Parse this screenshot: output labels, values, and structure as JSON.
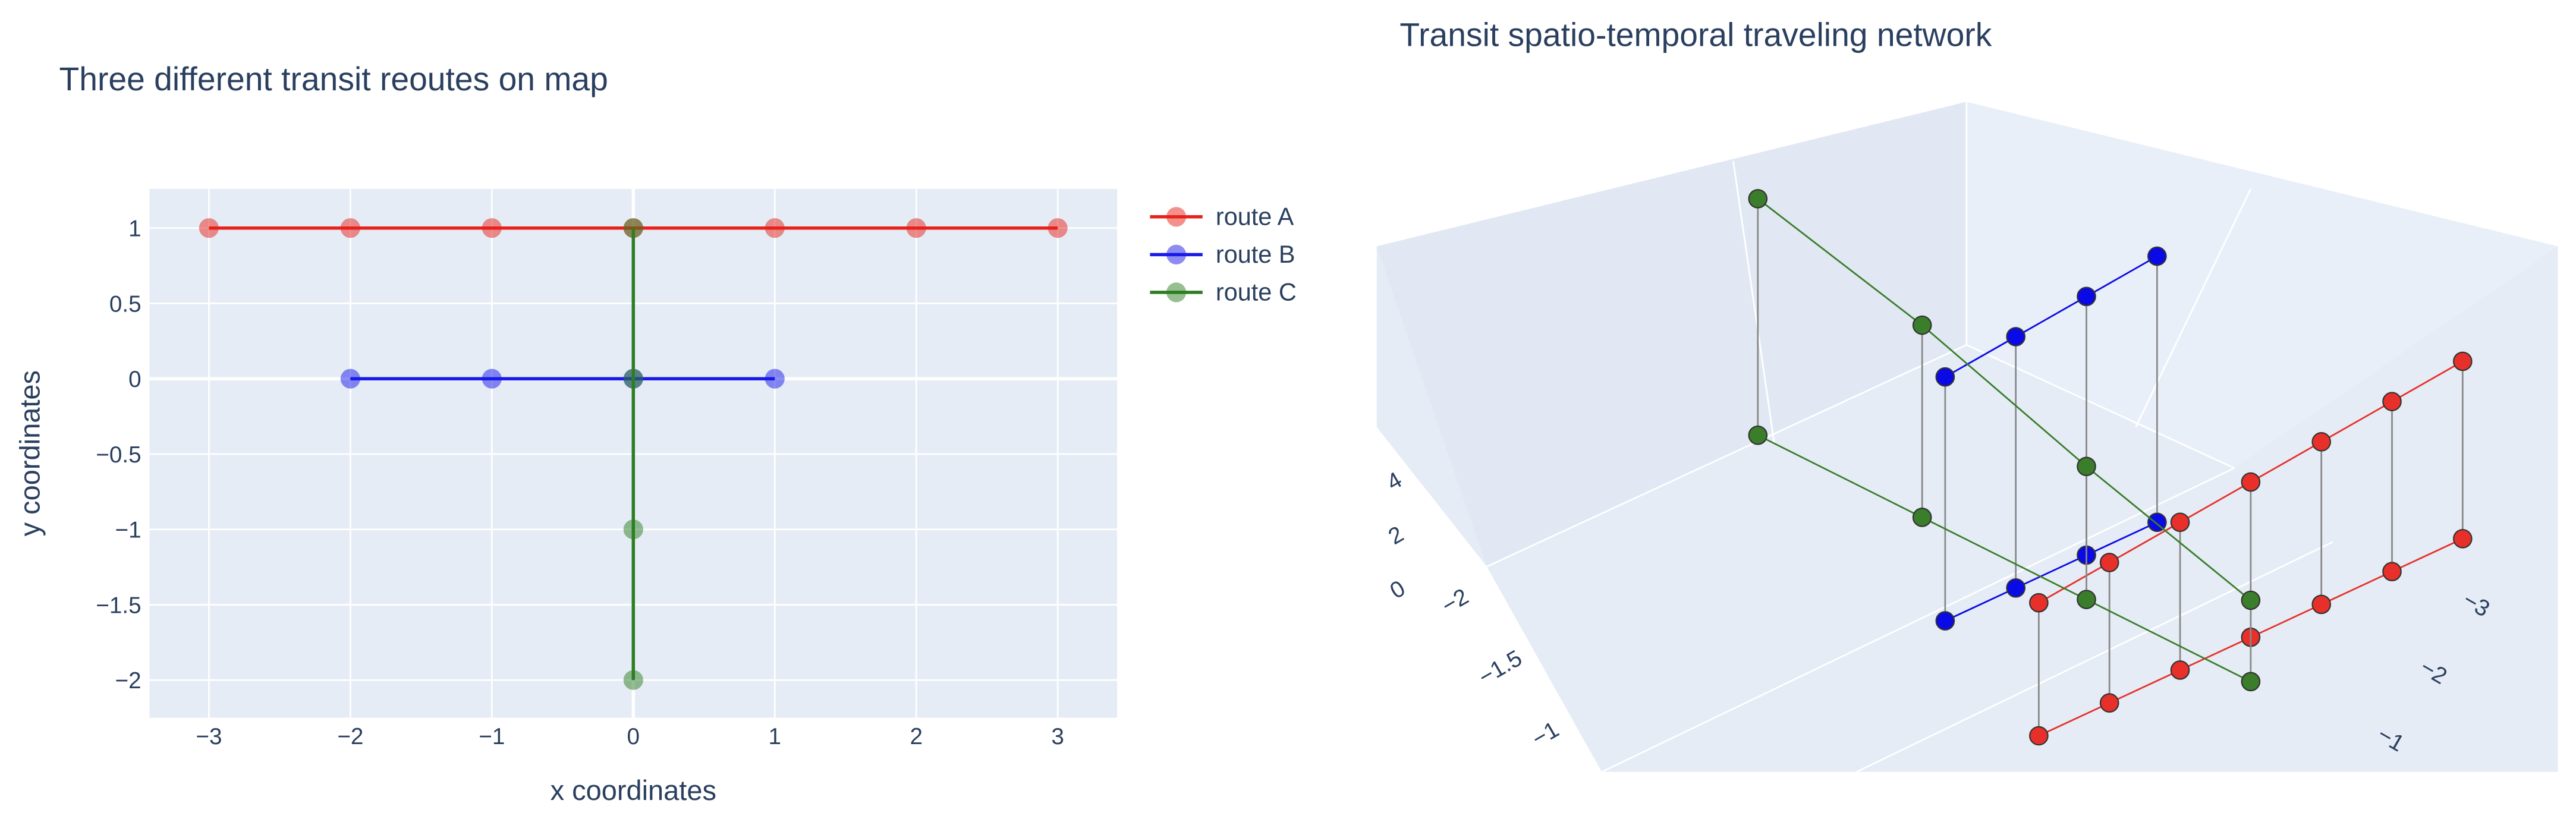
{
  "chart_data": [
    {
      "type": "line",
      "title": "Three different transit reoutes on map",
      "x_label": "x coordinates",
      "y_label": "y coordinates",
      "xlim": [
        -3.42,
        3.42
      ],
      "ylim": [
        -2.25,
        1.26
      ],
      "xticks": [
        {
          "value": -3,
          "label": "−3"
        },
        {
          "value": -2,
          "label": "−2"
        },
        {
          "value": -1,
          "label": "−1"
        },
        0,
        1,
        2,
        3
      ],
      "yticks": [
        1,
        0.5,
        0,
        {
          "value": -0.5,
          "label": "−0.5"
        },
        {
          "value": -1,
          "label": "−1"
        },
        {
          "value": -1.5,
          "label": "−1.5"
        },
        {
          "value": -2,
          "label": "−2"
        }
      ],
      "grid": true,
      "legend": "right",
      "series": [
        {
          "name": "route A",
          "color": "#e8221a",
          "x": [
            -3,
            -2,
            -1,
            0,
            1,
            2,
            3
          ],
          "y": [
            1,
            1,
            1,
            1,
            1,
            1,
            1
          ]
        },
        {
          "name": "route B",
          "color": "#1a1ae8",
          "x": [
            -2,
            -1,
            0,
            1
          ],
          "y": [
            0,
            0,
            0,
            0
          ]
        },
        {
          "name": "route C",
          "color": "#2e7d22",
          "x": [
            0,
            0,
            0,
            0
          ],
          "y": [
            1,
            0,
            -1,
            -2
          ]
        }
      ]
    },
    {
      "type": "scatter3d",
      "title": "Transit spatio-temporal traveling network",
      "xticks": [
        {
          "value": -3,
          "label": "−3"
        },
        {
          "value": -2,
          "label": "−2"
        },
        {
          "value": -1,
          "label": "−1"
        }
      ],
      "yticks": [
        {
          "value": -2,
          "label": "−2"
        },
        {
          "value": -1.5,
          "label": "−1.5"
        },
        {
          "value": -1,
          "label": "−1"
        }
      ],
      "zticks": [
        0,
        2,
        4
      ],
      "link_color": "#888888",
      "series": [
        {
          "color": "#e8302a",
          "x": [
            -3,
            -2,
            -1,
            0,
            1,
            2,
            3
          ],
          "y": [
            1,
            1,
            1,
            1,
            1,
            1,
            1
          ],
          "z": [
            0,
            0,
            0,
            0,
            0,
            0,
            0
          ],
          "z2": [
            1.8,
            1.9,
            2,
            2.1,
            2.2,
            2.3,
            2.4
          ]
        },
        {
          "color": "#0a0ae6",
          "x": [
            -2,
            -1,
            0,
            1
          ],
          "y": [
            0,
            0,
            0,
            0
          ],
          "z": [
            0,
            0,
            0,
            0
          ],
          "z2": [
            3.3,
            3.4,
            3.5,
            3.6
          ]
        },
        {
          "color": "#3a7d2a",
          "x": [
            0,
            0,
            0,
            0
          ],
          "y": [
            1,
            0,
            -1,
            -2
          ],
          "z": [
            -0.6,
            -0.6,
            -0.6,
            -0.6
          ],
          "z2": [
            0.5,
            1.2,
            2,
            2.6
          ]
        }
      ]
    }
  ]
}
